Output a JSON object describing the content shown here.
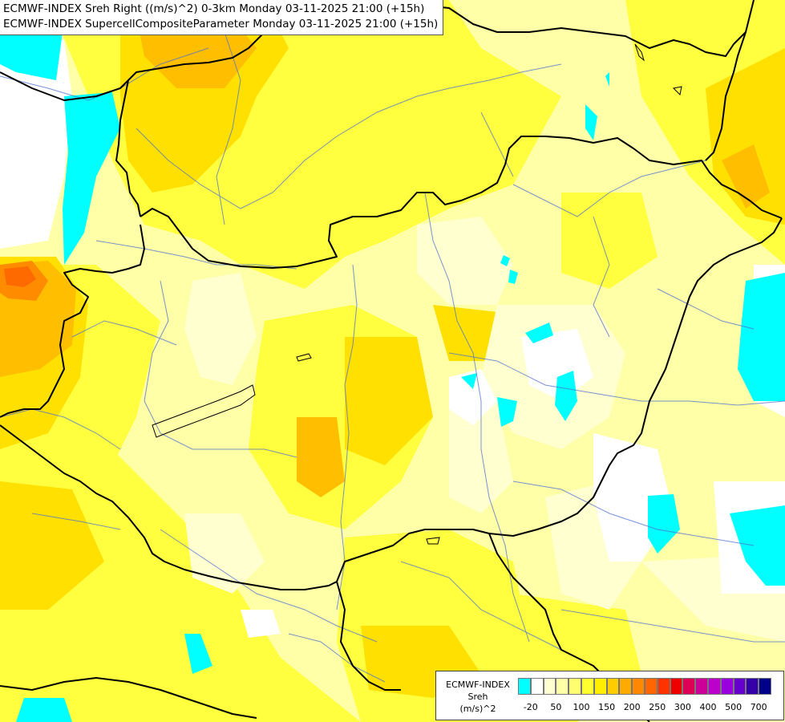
{
  "header": {
    "line1": "ECMWF-INDEX Sreh Right ((m/s)^2) 0-3km Monday 03-11-2025 21:00 (+15h)",
    "line2": "ECMWF-INDEX SupercellCompositeParameter Monday 03-11-2025 21:00 (+15h)"
  },
  "legend": {
    "title_source": "ECMWF-INDEX",
    "title_param": "Sreh",
    "title_unit": "(m/s)^2",
    "colors": [
      "#00ffff",
      "#ffffff",
      "#ffffd0",
      "#ffffa8",
      "#ffff70",
      "#ffff30",
      "#ffee00",
      "#ffcc00",
      "#ffaa00",
      "#ff8800",
      "#ff6600",
      "#ff3300",
      "#ee0000",
      "#dd0055",
      "#cc0099",
      "#bb00cc",
      "#9900dd",
      "#6600cc",
      "#3300aa",
      "#000088"
    ],
    "ticks": [
      "-20",
      "50",
      "100",
      "150",
      "200",
      "250",
      "300",
      "400",
      "500",
      "700"
    ]
  },
  "colors": {
    "border": "#000000",
    "river": "#4a6fd0",
    "cyan": "#00ffff",
    "white": "#ffffff",
    "pale": "#ffffb0",
    "yellow": "#ffff40",
    "gold": "#ffe000",
    "orange": "#ffbf00",
    "deep_orange": "#ff8c00"
  }
}
